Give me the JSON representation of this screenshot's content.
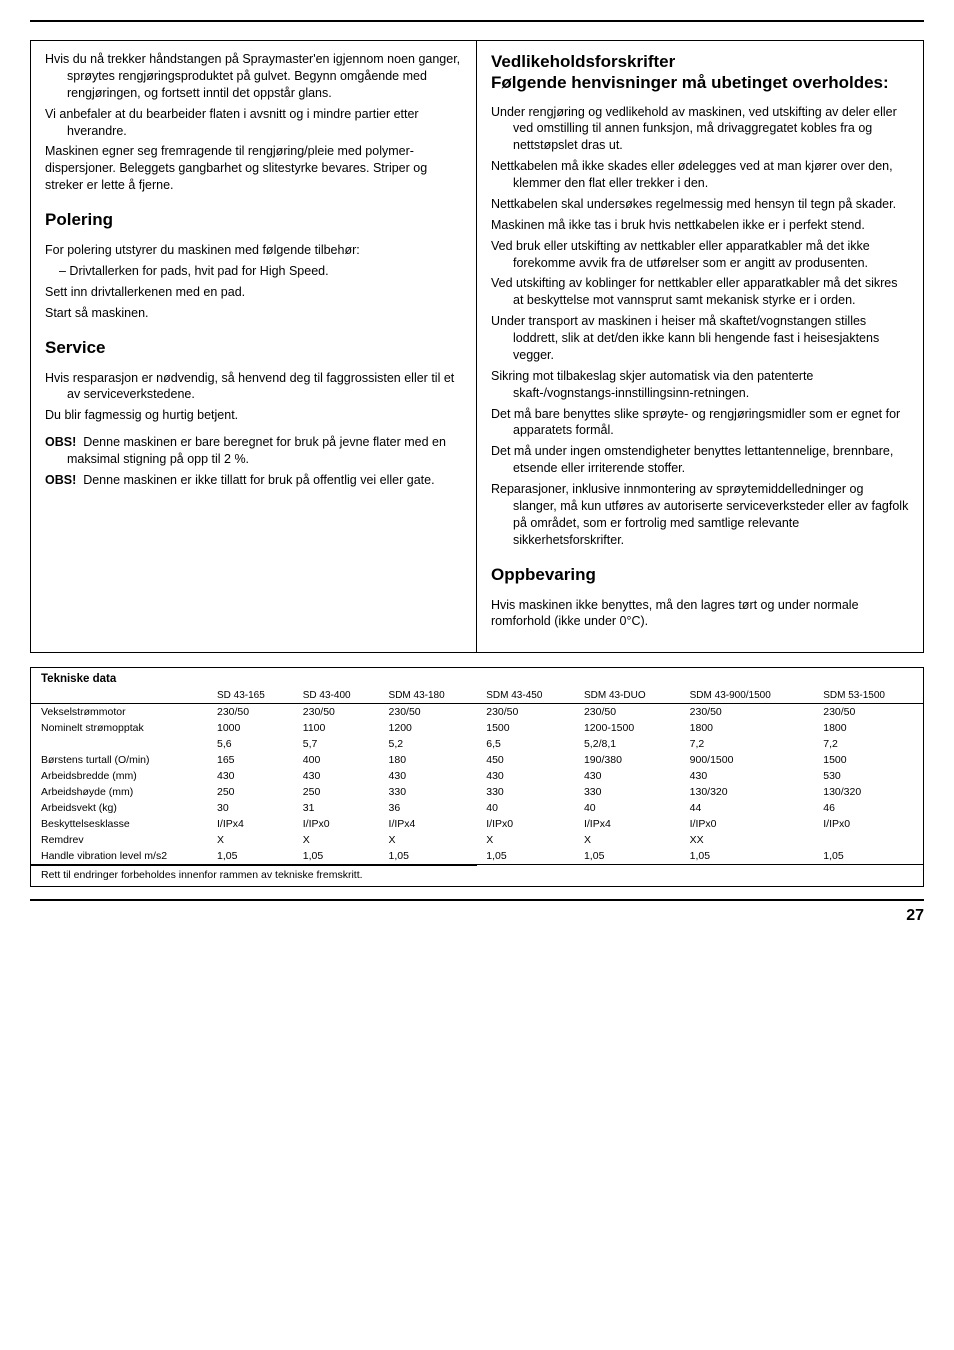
{
  "left": {
    "intro": [
      "Hvis du nå trekker håndstangen på Spraymaster'en igjennom noen ganger, sprøytes rengjøringsproduktet på gulvet. Begynn omgående med rengjøringen, og fortsett inntil det oppstår glans.",
      "Vi anbefaler at du bearbeider flaten i avsnitt og i mindre partier etter hverandre.",
      "Maskinen egner seg fremragende til rengjøring/pleie med polymer-dispersjoner. Beleggets gangbarhet og slitestyrke bevares. Striper og streker er lette å fjerne."
    ],
    "polering_h": "Polering",
    "polering": [
      "For polering utstyrer du maskinen med følgende tilbehør:",
      "– Drivtallerken for pads, hvit pad for High Speed.",
      "Sett inn drivtallerkenen med en pad.",
      "Start så maskinen."
    ],
    "service_h": "Service",
    "service": [
      "Hvis resparasjon er nødvendig, så henvend deg til faggrossisten eller til et av serviceverkstedene.",
      "Du blir fagmessig og hurtig betjent."
    ],
    "obs1_label": "OBS!",
    "obs1": "Denne maskinen er bare beregnet for bruk på jevne flater med en maksimal stigning på opp til 2 %.",
    "obs2_label": "OBS!",
    "obs2": "Denne maskinen er ikke tillatt for bruk på offentlig vei eller gate."
  },
  "right": {
    "title1": "Vedlikeholdsforskrifter",
    "title2": "Følgende henvisninger må ubetinget overholdes:",
    "items": [
      "Under rengjøring og vedlikehold av maskinen, ved utskifting av deler eller ved omstilling til annen funksjon, må drivaggregatet kobles fra og nettstøpslet dras ut.",
      "Nettkabelen må ikke skades eller ødelegges ved at man kjører over den, klemmer den flat eller trekker i den.",
      "Nettkabelen skal undersøkes regelmessig med hensyn til tegn på skader.",
      "Maskinen må ikke tas i bruk hvis nettkabelen ikke er i perfekt stend.",
      "Ved bruk eller utskifting av nettkabler eller apparatkabler må det ikke forekomme avvik fra de utførelser som er angitt av produsenten.",
      "Ved utskifting av koblinger for nettkabler eller apparatkabler må det sikres at beskyttelse mot vannsprut samt mekanisk styrke er i orden.",
      "Under transport av maskinen i heiser må skaftet/vognstangen stilles loddrett, slik at det/den ikke kann bli hengende fast i heisesjaktens vegger.",
      "Sikring mot tilbakeslag skjer automatisk via den patenterte skaft-/vognstangs-innstillingsinn-retningen.",
      "Det må bare benyttes slike sprøyte- og rengjøringsmidler som er egnet for apparatets formål.",
      "Det må under ingen omstendigheter benyttes lettantennelige, brennbare, etsende eller irriterende stoffer.",
      "Reparasjoner, inklusive innmontering av sprøytemiddelledninger og slanger, må kun utføres av autoriserte serviceverksteder eller av fagfolk på området, som er fortrolig med samtlige relevante sikkerhetsforskrifter."
    ],
    "oppbevaring_h": "Oppbevaring",
    "oppbevaring": "Hvis maskinen ikke benyttes, må den lagres tørt og under normale romforhold (ikke under 0°C)."
  },
  "table": {
    "title": "Tekniske data",
    "headers": [
      "",
      "SD 43-165",
      "SD 43-400",
      "SDM 43-180",
      "SDM 43-450",
      "SDM 43-DUO",
      "SDM 43-900/1500",
      "SDM 53-1500"
    ],
    "rows": [
      {
        "label": "Vekselstrømmotor",
        "cells": [
          "230/50",
          "230/50",
          "230/50",
          "230/50",
          "230/50",
          "230/50",
          "230/50"
        ]
      },
      {
        "label": "Nominelt strømopptak",
        "cells": [
          "1000",
          "1100",
          "1200",
          "1500",
          "1200-1500",
          "1800",
          "1800"
        ]
      },
      {
        "label": "",
        "cells": [
          "5,6",
          "5,7",
          "5,2",
          "6,5",
          "5,2/8,1",
          "7,2",
          "7,2"
        ]
      },
      {
        "label": "Børstens turtall (O/min)",
        "cells": [
          "165",
          "400",
          "180",
          "450",
          "190/380",
          "900/1500",
          "1500"
        ]
      },
      {
        "label": "Arbeidsbredde (mm)",
        "cells": [
          "430",
          "430",
          "430",
          "430",
          "430",
          "430",
          "530"
        ]
      },
      {
        "label": "Arbeidshøyde (mm)",
        "cells": [
          "250",
          "250",
          "330",
          "330",
          "330",
          "130/320",
          "130/320"
        ]
      },
      {
        "label": "Arbeidsvekt (kg)",
        "cells": [
          "30",
          "31",
          "36",
          "40",
          "40",
          "44",
          "46"
        ]
      },
      {
        "label": "Beskyttelsesklasse",
        "cells": [
          "I/IPx4",
          "I/IPx0",
          "I/IPx4",
          "I/IPx0",
          "I/IPx4",
          "I/IPx0",
          "I/IPx0"
        ]
      },
      {
        "label": "Remdrev",
        "cells": [
          "X",
          "X",
          "X",
          "X",
          "X",
          "XX",
          ""
        ]
      },
      {
        "label": "Handle vibration level m/s2",
        "cells": [
          "1,05",
          "1,05",
          "1,05",
          "1,05",
          "1,05",
          "1,05",
          "1,05"
        ]
      }
    ],
    "footnote": "Rett til endringer forbeholdes innenfor rammen av tekniske fremskritt."
  },
  "pagenum": "27"
}
